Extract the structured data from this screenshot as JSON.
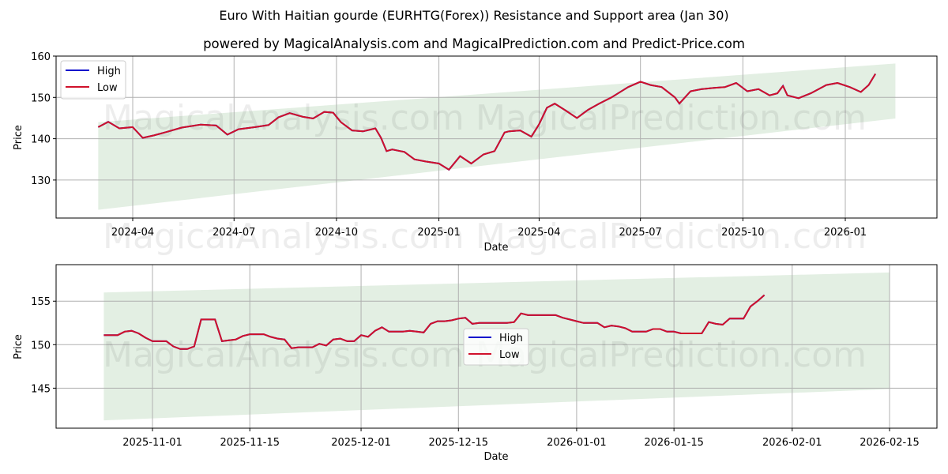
{
  "header": {
    "title": "Euro With Haitian gourde (EURHTG(Forex)) Resistance and Support area (Jan 30)",
    "subtitle": "powered by MagicalAnalysis.com and MagicalPrediction.com and Predict-Price.com"
  },
  "watermarks": [
    "MagicalAnalysis.com",
    "MagicalPrediction.com"
  ],
  "colors": {
    "high": "#0000cc",
    "low": "#d0112b",
    "band": "#e3efe3",
    "grid": "#b0b0b0"
  },
  "chart_data": [
    {
      "type": "line",
      "title": "Euro With Haitian gourde (EURHTG(Forex)) Resistance and Support area (Jan 30)",
      "xlabel": "Date",
      "ylabel": "Price",
      "ylim": [
        120.8,
        160
      ],
      "yticks": [
        130,
        140,
        150,
        160
      ],
      "xticks": [
        "2024-04",
        "2024-07",
        "2024-10",
        "2025-01",
        "2025-04",
        "2025-07",
        "2025-10",
        "2026-01"
      ],
      "grid": true,
      "legend": {
        "position": "upper left",
        "entries": [
          "High",
          "Low"
        ]
      },
      "band": {
        "start": "2024-03-01",
        "end": "2026-02-15",
        "upper": [
          144.0,
          158.2
        ],
        "lower": [
          122.8,
          144.9
        ]
      },
      "x": [
        "2024-03-01",
        "2024-03-10",
        "2024-03-20",
        "2024-04-01",
        "2024-04-10",
        "2024-04-20",
        "2024-05-01",
        "2024-05-15",
        "2024-06-01",
        "2024-06-15",
        "2024-06-25",
        "2024-07-05",
        "2024-07-20",
        "2024-08-01",
        "2024-08-10",
        "2024-08-20",
        "2024-09-01",
        "2024-09-10",
        "2024-09-20",
        "2024-09-28",
        "2024-10-05",
        "2024-10-15",
        "2024-10-25",
        "2024-11-05",
        "2024-11-10",
        "2024-11-15",
        "2024-11-20",
        "2024-12-01",
        "2024-12-10",
        "2024-12-20",
        "2025-01-01",
        "2025-01-10",
        "2025-01-20",
        "2025-01-30",
        "2025-02-10",
        "2025-02-20",
        "2025-03-01",
        "2025-03-05",
        "2025-03-15",
        "2025-03-25",
        "2025-04-01",
        "2025-04-08",
        "2025-04-15",
        "2025-04-25",
        "2025-05-05",
        "2025-05-15",
        "2025-05-25",
        "2025-06-05",
        "2025-06-20",
        "2025-07-01",
        "2025-07-10",
        "2025-07-20",
        "2025-08-01",
        "2025-08-05",
        "2025-08-15",
        "2025-08-25",
        "2025-09-05",
        "2025-09-15",
        "2025-09-25",
        "2025-10-05",
        "2025-10-15",
        "2025-10-25",
        "2025-11-01",
        "2025-11-06",
        "2025-11-10",
        "2025-11-20",
        "2025-12-01",
        "2025-12-15",
        "2025-12-25",
        "2026-01-05",
        "2026-01-15",
        "2026-01-22",
        "2026-01-28"
      ],
      "series": [
        {
          "name": "High",
          "values": [
            142.8,
            144.1,
            142.5,
            142.8,
            140.2,
            140.8,
            141.6,
            142.7,
            143.4,
            143.2,
            141.0,
            142.3,
            142.8,
            143.3,
            145.2,
            146.2,
            145.3,
            144.9,
            146.5,
            146.3,
            144.0,
            142.0,
            141.8,
            142.5,
            140.2,
            137.0,
            137.4,
            136.8,
            135.0,
            134.5,
            134.0,
            132.5,
            135.8,
            134.0,
            136.2,
            137.0,
            141.5,
            141.8,
            142.0,
            140.5,
            143.5,
            147.5,
            148.5,
            146.8,
            145.0,
            147.0,
            148.5,
            150.0,
            152.5,
            153.8,
            153.0,
            152.5,
            150.0,
            148.5,
            151.5,
            152.0,
            152.3,
            152.5,
            153.5,
            151.5,
            152.0,
            150.5,
            151.0,
            152.8,
            150.5,
            149.8,
            151.0,
            153.0,
            153.5,
            152.5,
            151.3,
            153.0,
            155.7
          ]
        },
        {
          "name": "Low",
          "values": [
            142.8,
            144.1,
            142.5,
            142.8,
            140.2,
            140.8,
            141.6,
            142.7,
            143.4,
            143.2,
            141.0,
            142.3,
            142.8,
            143.3,
            145.2,
            146.2,
            145.3,
            144.9,
            146.5,
            146.3,
            144.0,
            142.0,
            141.8,
            142.5,
            140.2,
            137.0,
            137.4,
            136.8,
            135.0,
            134.5,
            134.0,
            132.5,
            135.8,
            134.0,
            136.2,
            137.0,
            141.5,
            141.8,
            142.0,
            140.5,
            143.5,
            147.5,
            148.5,
            146.8,
            145.0,
            147.0,
            148.5,
            150.0,
            152.5,
            153.8,
            153.0,
            152.5,
            150.0,
            148.5,
            151.5,
            152.0,
            152.3,
            152.5,
            153.5,
            151.5,
            152.0,
            150.5,
            151.0,
            152.8,
            150.5,
            149.8,
            151.0,
            153.0,
            153.5,
            152.5,
            151.3,
            153.0,
            155.7
          ]
        }
      ]
    },
    {
      "type": "line",
      "xlabel": "Date",
      "ylabel": "Price",
      "ylim": [
        140.4,
        159.2
      ],
      "yticks": [
        145,
        150,
        155
      ],
      "xticks": [
        "2025-11-01",
        "2025-11-15",
        "2025-12-01",
        "2025-12-15",
        "2026-01-01",
        "2026-01-15",
        "2026-02-01",
        "2026-02-15"
      ],
      "grid": true,
      "legend": {
        "position": "center",
        "entries": [
          "High",
          "Low"
        ]
      },
      "band": {
        "start": "2025-10-25",
        "end": "2026-02-15",
        "upper": [
          156.0,
          158.3
        ],
        "lower": [
          141.3,
          144.9
        ]
      },
      "x": [
        "2025-10-25",
        "2025-10-26",
        "2025-10-27",
        "2025-10-28",
        "2025-10-29",
        "2025-10-30",
        "2025-10-31",
        "2025-11-01",
        "2025-11-02",
        "2025-11-03",
        "2025-11-04",
        "2025-11-05",
        "2025-11-06",
        "2025-11-07",
        "2025-11-08",
        "2025-11-09",
        "2025-11-10",
        "2025-11-11",
        "2025-11-12",
        "2025-11-13",
        "2025-11-14",
        "2025-11-15",
        "2025-11-16",
        "2025-11-17",
        "2025-11-18",
        "2025-11-19",
        "2025-11-20",
        "2025-11-21",
        "2025-11-22",
        "2025-11-23",
        "2025-11-24",
        "2025-11-25",
        "2025-11-26",
        "2025-11-27",
        "2025-11-28",
        "2025-11-29",
        "2025-11-30",
        "2025-12-01",
        "2025-12-02",
        "2025-12-03",
        "2025-12-04",
        "2025-12-05",
        "2025-12-06",
        "2025-12-07",
        "2025-12-08",
        "2025-12-09",
        "2025-12-10",
        "2025-12-11",
        "2025-12-12",
        "2025-12-13",
        "2025-12-14",
        "2025-12-15",
        "2025-12-16",
        "2025-12-17",
        "2025-12-18",
        "2025-12-19",
        "2025-12-20",
        "2025-12-21",
        "2025-12-22",
        "2025-12-23",
        "2025-12-24",
        "2025-12-25",
        "2025-12-26",
        "2025-12-27",
        "2025-12-28",
        "2025-12-29",
        "2025-12-30",
        "2025-12-31",
        "2026-01-01",
        "2026-01-02",
        "2026-01-03",
        "2026-01-04",
        "2026-01-05",
        "2026-01-06",
        "2026-01-07",
        "2026-01-08",
        "2026-01-09",
        "2026-01-10",
        "2026-01-11",
        "2026-01-12",
        "2026-01-13",
        "2026-01-14",
        "2026-01-15",
        "2026-01-16",
        "2026-01-17",
        "2026-01-18",
        "2026-01-19",
        "2026-01-20",
        "2026-01-21",
        "2026-01-22",
        "2026-01-23",
        "2026-01-24",
        "2026-01-25",
        "2026-01-26",
        "2026-01-27",
        "2026-01-28"
      ],
      "series": [
        {
          "name": "High",
          "values": [
            151.1,
            151.1,
            151.1,
            151.5,
            151.6,
            151.3,
            150.8,
            150.4,
            150.4,
            150.4,
            149.8,
            149.5,
            149.5,
            149.8,
            152.9,
            152.9,
            152.9,
            150.4,
            150.5,
            150.6,
            151.0,
            151.2,
            151.2,
            151.2,
            150.9,
            150.7,
            150.6,
            149.6,
            149.7,
            149.7,
            149.7,
            150.1,
            149.9,
            150.6,
            150.7,
            150.4,
            150.4,
            151.1,
            150.9,
            151.6,
            152.0,
            151.5,
            151.5,
            151.5,
            151.6,
            151.5,
            151.4,
            152.4,
            152.7,
            152.7,
            152.8,
            153.0,
            153.1,
            152.4,
            152.5,
            152.5,
            152.5,
            152.5,
            152.5,
            152.6,
            153.6,
            153.4,
            153.4,
            153.4,
            153.4,
            153.4,
            153.1,
            152.9,
            152.7,
            152.5,
            152.5,
            152.5,
            152.0,
            152.2,
            152.1,
            151.9,
            151.5,
            151.5,
            151.5,
            151.8,
            151.8,
            151.5,
            151.5,
            151.3,
            151.3,
            151.3,
            151.3,
            152.6,
            152.4,
            152.3,
            153.0,
            153.0,
            153.0,
            154.4,
            155.0,
            155.7
          ]
        },
        {
          "name": "Low",
          "values": [
            151.1,
            151.1,
            151.1,
            151.5,
            151.6,
            151.3,
            150.8,
            150.4,
            150.4,
            150.4,
            149.8,
            149.5,
            149.5,
            149.8,
            152.9,
            152.9,
            152.9,
            150.4,
            150.5,
            150.6,
            151.0,
            151.2,
            151.2,
            151.2,
            150.9,
            150.7,
            150.6,
            149.6,
            149.7,
            149.7,
            149.7,
            150.1,
            149.9,
            150.6,
            150.7,
            150.4,
            150.4,
            151.1,
            150.9,
            151.6,
            152.0,
            151.5,
            151.5,
            151.5,
            151.6,
            151.5,
            151.4,
            152.4,
            152.7,
            152.7,
            152.8,
            153.0,
            153.1,
            152.4,
            152.5,
            152.5,
            152.5,
            152.5,
            152.5,
            152.6,
            153.6,
            153.4,
            153.4,
            153.4,
            153.4,
            153.4,
            153.1,
            152.9,
            152.7,
            152.5,
            152.5,
            152.5,
            152.0,
            152.2,
            152.1,
            151.9,
            151.5,
            151.5,
            151.5,
            151.8,
            151.8,
            151.5,
            151.5,
            151.3,
            151.3,
            151.3,
            151.3,
            152.6,
            152.4,
            152.3,
            153.0,
            153.0,
            153.0,
            154.4,
            155.0,
            155.7
          ]
        }
      ]
    }
  ]
}
